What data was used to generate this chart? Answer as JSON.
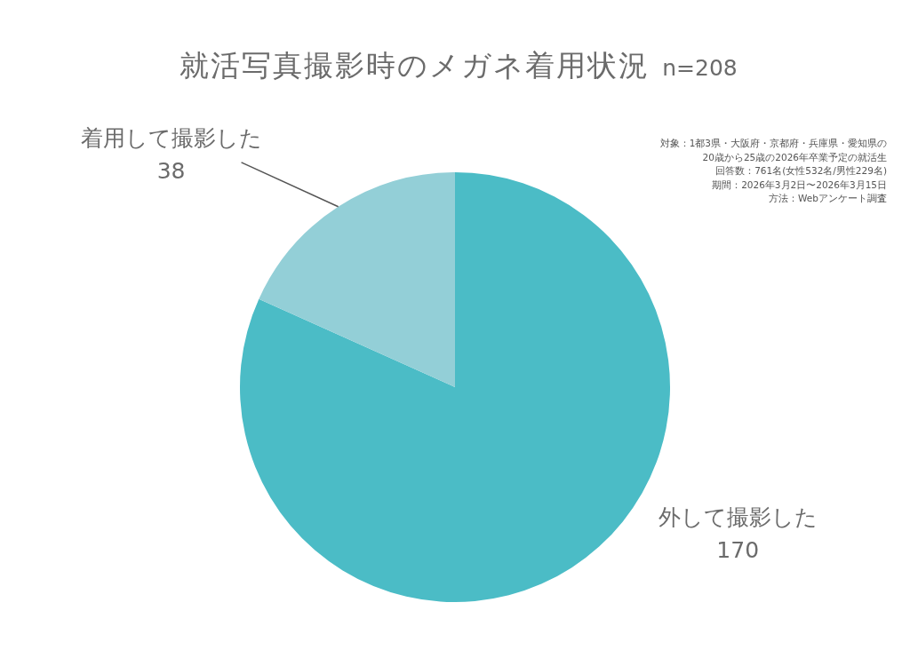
{
  "chart_data": {
    "type": "pie",
    "title": "就活写真撮影時のメガネ着用状況",
    "subtitle": "n=208",
    "categories": [
      "外して撮影した",
      "着用して撮影した"
    ],
    "values": [
      170,
      38
    ],
    "colors": [
      "#4bbcc6",
      "#93cfd7"
    ],
    "data_labels": true,
    "annotations": [
      "対象：1都3県・大阪府・京都府・兵庫県・愛知県の",
      "20歳から25歳の2026年卒業予定の就活生",
      "回答数：761名(女性532名/男性229名)",
      "期間：2026年3月2日〜2026年3月15日",
      "方法：Webアンケート調査"
    ]
  }
}
